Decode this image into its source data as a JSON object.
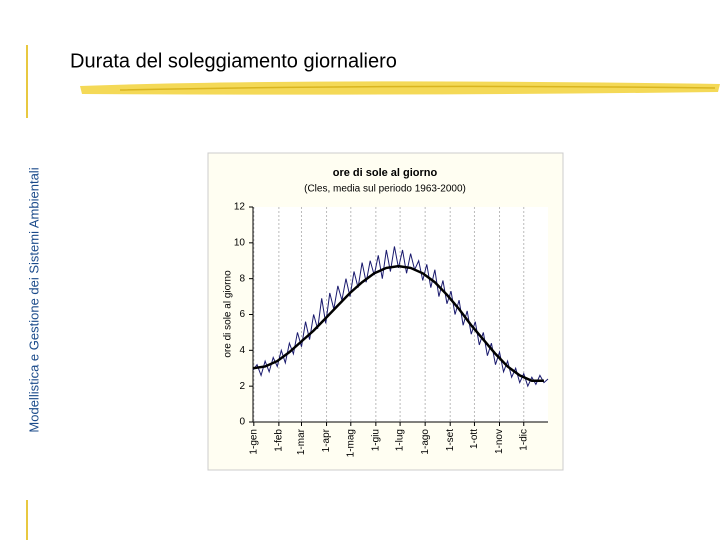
{
  "slide": {
    "title": "Durata del soleggiamento giornaliero",
    "side_label": "Modellistica e Gestione dei Sistemi Ambientali"
  },
  "chart_data": {
    "type": "line",
    "title": "ore di sole al giorno",
    "subtitle": "(Cles, media sul periodo 1963-2000)",
    "y_label": "ore di sole al giorno",
    "xlim": [
      0,
      365
    ],
    "ylim": [
      0,
      12
    ],
    "yticks": [
      0,
      2,
      4,
      6,
      8,
      10,
      12
    ],
    "xticks": [
      {
        "value": 1,
        "label": "1-gen"
      },
      {
        "value": 32,
        "label": "1-feb"
      },
      {
        "value": 60,
        "label": "1-mar"
      },
      {
        "value": 91,
        "label": "1-apr"
      },
      {
        "value": 121,
        "label": "1-mag"
      },
      {
        "value": 152,
        "label": "1-giu"
      },
      {
        "value": 182,
        "label": "1-lug"
      },
      {
        "value": 213,
        "label": "1-ago"
      },
      {
        "value": 244,
        "label": "1-set"
      },
      {
        "value": 274,
        "label": "1-ott"
      },
      {
        "value": 305,
        "label": "1-nov"
      },
      {
        "value": 335,
        "label": "1-dic"
      }
    ],
    "grid": true,
    "series": [
      {
        "color": "#1a1a6e",
        "width": 1,
        "x": [
          0,
          5,
          10,
          15,
          20,
          25,
          30,
          35,
          40,
          45,
          50,
          55,
          60,
          65,
          70,
          75,
          80,
          85,
          90,
          95,
          100,
          105,
          110,
          115,
          120,
          125,
          130,
          135,
          140,
          145,
          150,
          155,
          160,
          165,
          170,
          175,
          180,
          185,
          190,
          195,
          200,
          205,
          210,
          215,
          220,
          225,
          230,
          235,
          240,
          245,
          250,
          255,
          260,
          265,
          270,
          275,
          280,
          285,
          290,
          295,
          300,
          305,
          310,
          315,
          320,
          325,
          330,
          335,
          340,
          345,
          350,
          355,
          360,
          365
        ],
        "values": [
          2.9,
          3.2,
          2.6,
          3.4,
          2.8,
          3.6,
          3.1,
          4.0,
          3.3,
          4.4,
          3.8,
          5.0,
          4.2,
          5.6,
          4.6,
          6.0,
          5.2,
          6.9,
          5.5,
          7.2,
          6.3,
          7.6,
          6.8,
          8.0,
          7.0,
          8.4,
          7.5,
          8.9,
          7.8,
          9.0,
          8.2,
          9.3,
          8.0,
          9.6,
          8.4,
          9.8,
          8.6,
          9.6,
          8.3,
          9.4,
          8.5,
          9.0,
          7.9,
          8.8,
          7.5,
          8.5,
          7.0,
          7.9,
          6.6,
          7.3,
          6.0,
          6.8,
          5.4,
          6.2,
          4.9,
          5.6,
          4.3,
          5.0,
          3.7,
          4.4,
          3.2,
          3.9,
          2.8,
          3.4,
          2.5,
          3.0,
          2.2,
          2.7,
          2.0,
          2.5,
          2.1,
          2.6,
          2.2,
          2.4
        ]
      },
      {
        "color": "#000000",
        "width": 2.5,
        "x": [
          0,
          15,
          30,
          45,
          60,
          75,
          90,
          105,
          120,
          135,
          150,
          165,
          180,
          195,
          210,
          225,
          240,
          255,
          270,
          285,
          300,
          315,
          330,
          345,
          360
        ],
        "values": [
          3.0,
          3.1,
          3.4,
          3.9,
          4.5,
          5.1,
          5.8,
          6.5,
          7.2,
          7.8,
          8.3,
          8.6,
          8.7,
          8.6,
          8.3,
          7.8,
          7.1,
          6.3,
          5.4,
          4.6,
          3.8,
          3.1,
          2.6,
          2.3,
          2.3
        ]
      }
    ]
  }
}
